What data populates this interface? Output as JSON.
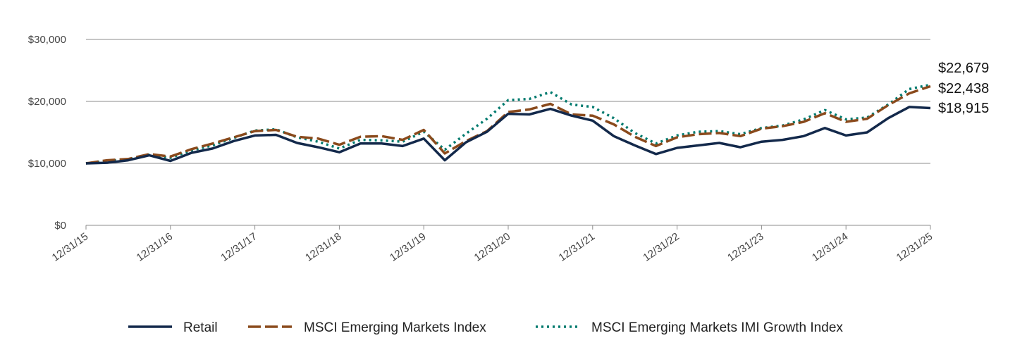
{
  "chart_data": {
    "type": "line",
    "title": "",
    "xlabel": "",
    "ylabel": "",
    "ylim": [
      0,
      30000
    ],
    "y_ticks": [
      0,
      10000,
      20000,
      30000
    ],
    "y_tick_labels": [
      "$0",
      "$10,000",
      "$20,000",
      "$30,000"
    ],
    "x_tick_labels": [
      "12/31/15",
      "12/31/16",
      "12/31/17",
      "12/31/18",
      "12/31/19",
      "12/31/20",
      "12/31/21",
      "12/31/22",
      "12/31/23",
      "12/31/24",
      "12/31/25"
    ],
    "x": [
      "12/31/15",
      "3/31/16",
      "6/30/16",
      "9/30/16",
      "12/31/16",
      "3/31/17",
      "6/30/17",
      "9/30/17",
      "12/31/17",
      "3/31/18",
      "6/30/18",
      "9/30/18",
      "12/31/18",
      "3/31/19",
      "6/30/19",
      "9/30/19",
      "12/31/19",
      "3/31/20",
      "6/30/20",
      "9/30/20",
      "12/31/20",
      "3/31/21",
      "6/30/21",
      "9/30/21",
      "12/31/21",
      "3/31/22",
      "6/30/22",
      "9/30/22",
      "12/31/22",
      "3/31/23",
      "6/30/23",
      "9/30/23",
      "12/31/23",
      "3/31/24",
      "6/30/24",
      "9/30/24",
      "12/31/24",
      "3/31/25",
      "6/30/25",
      "9/30/25",
      "12/31/25"
    ],
    "series": [
      {
        "name": "Retail",
        "color": "#13294b",
        "style": "solid",
        "values": [
          10000,
          10100,
          10500,
          11300,
          10400,
          11700,
          12400,
          13600,
          14500,
          14600,
          13300,
          12600,
          11800,
          13200,
          13200,
          12800,
          14000,
          10500,
          13400,
          15100,
          18000,
          17900,
          18800,
          17700,
          16900,
          14400,
          12900,
          11500,
          12500,
          12900,
          13300,
          12600,
          13500,
          13800,
          14400,
          15700,
          14500,
          15000,
          17300,
          19100,
          18915
        ]
      },
      {
        "name": "MSCI Emerging Markets Index",
        "color": "#8a4a1c",
        "style": "dashed",
        "values": [
          10000,
          10500,
          10700,
          11500,
          11100,
          12300,
          13200,
          14200,
          15200,
          15400,
          14300,
          14000,
          13000,
          14300,
          14400,
          13800,
          15400,
          11600,
          13600,
          15200,
          18300,
          18700,
          19600,
          17900,
          17700,
          16300,
          14300,
          12800,
          14200,
          14700,
          14900,
          14400,
          15600,
          16000,
          16700,
          18100,
          16700,
          17200,
          19400,
          21300,
          22438
        ]
      },
      {
        "name": "MSCI Emerging Markets IMI Growth Index",
        "color": "#007a6e",
        "style": "dotted",
        "values": [
          10000,
          10400,
          10600,
          11400,
          10900,
          12100,
          12900,
          14100,
          15300,
          15500,
          14200,
          13500,
          12400,
          13800,
          13700,
          13500,
          15100,
          12200,
          14800,
          17200,
          20200,
          20400,
          21500,
          19500,
          19100,
          17300,
          14900,
          13200,
          14500,
          15100,
          15200,
          14700,
          15700,
          16100,
          17100,
          18600,
          17100,
          17400,
          19500,
          22000,
          22679
        ]
      }
    ],
    "end_labels": [
      "$22,679",
      "$22,438",
      "$18,915"
    ],
    "legend_position": "bottom-center"
  }
}
